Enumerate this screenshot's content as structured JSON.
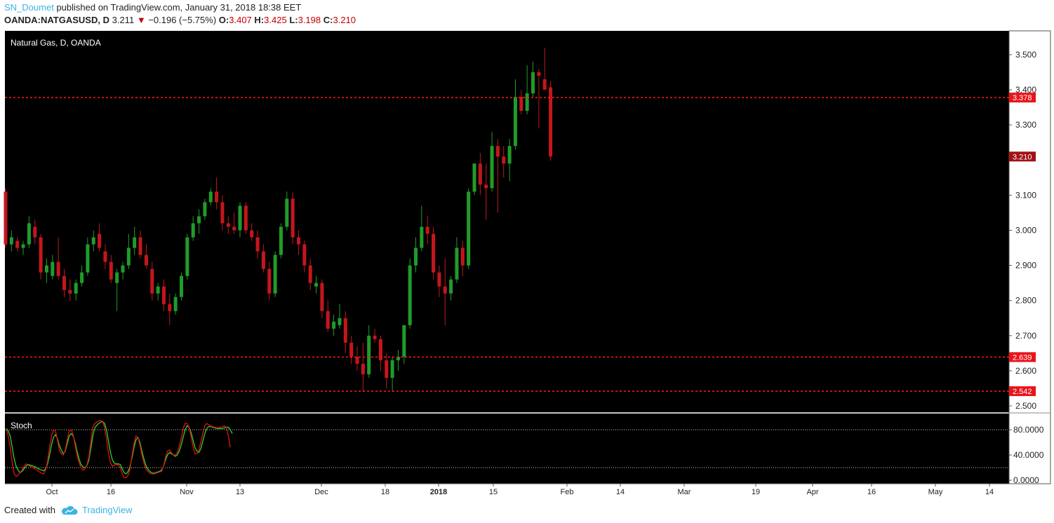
{
  "header": {
    "author": "SN_Doumet",
    "published_text": "published on TradingView.com, January 31, 2018 18:38 EET",
    "symbol": "OANDA:NATGASUSD, D",
    "last": "3.211",
    "change": "−0.196 (−5.75%)",
    "o_label": "O:",
    "o_value": "3.407",
    "h_label": "H:",
    "h_value": "3.425",
    "l_label": "L:",
    "l_value": "3.198",
    "c_label": "C:",
    "c_value": "3.210"
  },
  "footer": {
    "created_with": "Created with",
    "brand": "TradingView"
  },
  "colors": {
    "background": "#000000",
    "bull": "#1f9c2a",
    "bear": "#c4161c",
    "level_line": "#ff1a1a",
    "stoch_k": "#2bd42b",
    "stoch_d": "#e01010"
  },
  "chart_data": [
    {
      "type": "candlestick",
      "title": "Natural Gas, D, OANDA",
      "ylim": [
        2.48,
        3.54
      ],
      "y_ticks": [
        "3.500",
        "3.400",
        "3.300",
        "3.100",
        "3.000",
        "2.900",
        "2.800",
        "2.700",
        "2.600",
        "2.500"
      ],
      "x_ticks": [
        "Oct",
        "16",
        "Nov",
        "13",
        "Dec",
        "18",
        "2018",
        "15",
        "Feb",
        "14",
        "Mar",
        "19",
        "Apr",
        "16",
        "May",
        "14"
      ],
      "horizontal_levels": [
        {
          "value": 3.378,
          "label": "3.378"
        },
        {
          "value": 2.639,
          "label": "2.639"
        },
        {
          "value": 2.542,
          "label": "2.542"
        }
      ],
      "last_price_label": "3.210",
      "candles": [
        [
          3.11,
          3.12,
          2.95,
          2.96
        ],
        [
          2.96,
          3.0,
          2.94,
          2.98
        ],
        [
          2.97,
          2.98,
          2.94,
          2.95
        ],
        [
          2.95,
          2.97,
          2.93,
          2.96
        ],
        [
          2.96,
          3.04,
          2.95,
          3.02
        ],
        [
          3.01,
          3.03,
          2.96,
          2.98
        ],
        [
          2.98,
          2.99,
          2.86,
          2.88
        ],
        [
          2.88,
          2.92,
          2.85,
          2.9
        ],
        [
          2.87,
          2.93,
          2.86,
          2.91
        ],
        [
          2.91,
          2.98,
          2.86,
          2.87
        ],
        [
          2.87,
          2.89,
          2.81,
          2.83
        ],
        [
          2.83,
          2.86,
          2.8,
          2.82
        ],
        [
          2.82,
          2.86,
          2.8,
          2.85
        ],
        [
          2.85,
          2.9,
          2.84,
          2.88
        ],
        [
          2.88,
          2.98,
          2.87,
          2.96
        ],
        [
          2.96,
          3.0,
          2.94,
          2.98
        ],
        [
          2.99,
          3.02,
          2.94,
          2.95
        ],
        [
          2.94,
          2.96,
          2.89,
          2.91
        ],
        [
          2.91,
          2.93,
          2.85,
          2.86
        ],
        [
          2.85,
          2.89,
          2.77,
          2.88
        ],
        [
          2.88,
          2.91,
          2.86,
          2.9
        ],
        [
          2.9,
          2.99,
          2.89,
          2.95
        ],
        [
          2.95,
          3.01,
          2.93,
          2.98
        ],
        [
          2.98,
          3.0,
          2.92,
          2.93
        ],
        [
          2.93,
          2.96,
          2.89,
          2.9
        ],
        [
          2.89,
          2.91,
          2.8,
          2.82
        ],
        [
          2.82,
          2.85,
          2.8,
          2.84
        ],
        [
          2.84,
          2.86,
          2.77,
          2.79
        ],
        [
          2.79,
          2.82,
          2.73,
          2.77
        ],
        [
          2.77,
          2.82,
          2.76,
          2.81
        ],
        [
          2.81,
          2.88,
          2.8,
          2.87
        ],
        [
          2.87,
          2.99,
          2.86,
          2.98
        ],
        [
          2.98,
          3.04,
          2.97,
          3.02
        ],
        [
          3.02,
          3.06,
          2.99,
          3.04
        ],
        [
          3.04,
          3.09,
          3.03,
          3.08
        ],
        [
          3.08,
          3.12,
          3.07,
          3.11
        ],
        [
          3.11,
          3.15,
          3.06,
          3.08
        ],
        [
          3.08,
          3.1,
          3.0,
          3.02
        ],
        [
          3.02,
          3.04,
          2.99,
          3.01
        ],
        [
          3.01,
          3.05,
          2.99,
          3.0
        ],
        [
          3.0,
          3.08,
          2.98,
          3.07
        ],
        [
          3.07,
          3.08,
          2.99,
          3.0
        ],
        [
          3.0,
          3.02,
          2.97,
          2.98
        ],
        [
          2.98,
          3.0,
          2.92,
          2.94
        ],
        [
          2.94,
          2.96,
          2.88,
          2.89
        ],
        [
          2.89,
          2.91,
          2.8,
          2.82
        ],
        [
          2.82,
          2.94,
          2.81,
          2.93
        ],
        [
          2.93,
          3.02,
          2.92,
          3.01
        ],
        [
          3.01,
          3.11,
          3.0,
          3.09
        ],
        [
          3.09,
          3.11,
          2.96,
          2.98
        ],
        [
          2.98,
          3.0,
          2.93,
          2.96
        ],
        [
          2.96,
          2.97,
          2.88,
          2.9
        ],
        [
          2.9,
          2.92,
          2.83,
          2.85
        ],
        [
          2.84,
          2.87,
          2.82,
          2.85
        ],
        [
          2.85,
          2.86,
          2.75,
          2.77
        ],
        [
          2.77,
          2.8,
          2.71,
          2.72
        ],
        [
          2.72,
          2.76,
          2.7,
          2.74
        ],
        [
          2.73,
          2.79,
          2.72,
          2.75
        ],
        [
          2.75,
          2.77,
          2.65,
          2.68
        ],
        [
          2.68,
          2.7,
          2.62,
          2.64
        ],
        [
          2.64,
          2.67,
          2.6,
          2.62
        ],
        [
          2.62,
          2.68,
          2.54,
          2.59
        ],
        [
          2.59,
          2.73,
          2.58,
          2.7
        ],
        [
          2.7,
          2.72,
          2.68,
          2.69
        ],
        [
          2.69,
          2.7,
          2.6,
          2.63
        ],
        [
          2.63,
          2.65,
          2.55,
          2.58
        ],
        [
          2.58,
          2.64,
          2.54,
          2.63
        ],
        [
          2.63,
          2.66,
          2.6,
          2.64
        ],
        [
          2.64,
          2.72,
          2.62,
          2.73
        ],
        [
          2.73,
          2.92,
          2.72,
          2.9
        ],
        [
          2.9,
          2.98,
          2.88,
          2.95
        ],
        [
          2.95,
          3.07,
          2.94,
          3.01
        ],
        [
          3.01,
          3.04,
          2.96,
          2.99
        ],
        [
          2.99,
          3.01,
          2.86,
          2.88
        ],
        [
          2.88,
          2.9,
          2.81,
          2.84
        ],
        [
          2.84,
          2.92,
          2.73,
          2.82
        ],
        [
          2.82,
          2.87,
          2.8,
          2.86
        ],
        [
          2.86,
          2.98,
          2.85,
          2.95
        ],
        [
          2.95,
          2.97,
          2.87,
          2.9
        ],
        [
          2.9,
          3.12,
          2.89,
          3.11
        ],
        [
          3.11,
          3.19,
          3.1,
          3.19
        ],
        [
          3.19,
          3.22,
          3.1,
          3.13
        ],
        [
          3.13,
          3.19,
          3.03,
          3.12
        ],
        [
          3.12,
          3.28,
          3.11,
          3.24
        ],
        [
          3.24,
          3.26,
          3.05,
          3.21
        ],
        [
          3.21,
          3.24,
          3.15,
          3.19
        ],
        [
          3.19,
          3.26,
          3.14,
          3.24
        ],
        [
          3.24,
          3.43,
          3.23,
          3.38
        ],
        [
          3.38,
          3.4,
          3.33,
          3.34
        ],
        [
          3.34,
          3.47,
          3.33,
          3.39
        ],
        [
          3.39,
          3.48,
          3.38,
          3.45
        ],
        [
          3.45,
          3.46,
          3.29,
          3.44
        ],
        [
          3.43,
          3.52,
          3.4,
          3.4
        ],
        [
          3.407,
          3.425,
          3.198,
          3.21
        ]
      ]
    },
    {
      "type": "line",
      "title": "Stoch",
      "ylim": [
        -2,
        100
      ],
      "y_ticks": [
        "80.0000",
        "40.0000",
        "0.0000"
      ],
      "bands": [
        80,
        20
      ],
      "series": [
        {
          "values": [
            82,
            78,
            70,
            52,
            34,
            22,
            16,
            12,
            14,
            18,
            22,
            25,
            24,
            23,
            22,
            21,
            19,
            17,
            16,
            15,
            18,
            26,
            40,
            56,
            68,
            72,
            66,
            55,
            48,
            42,
            46,
            58,
            70,
            74,
            70,
            60,
            46,
            34,
            25,
            21,
            20,
            23,
            32,
            50,
            70,
            83,
            87,
            90,
            92,
            93,
            90,
            80,
            62,
            44,
            32,
            27,
            26,
            26,
            25,
            18,
            12,
            10,
            14,
            22,
            36,
            52,
            64,
            68,
            60,
            46,
            34,
            24,
            18,
            14,
            12,
            11,
            12,
            13,
            14,
            16,
            22,
            32,
            40,
            44,
            42,
            40,
            38,
            40,
            46,
            56,
            68,
            80,
            86,
            84,
            76,
            64,
            52,
            46,
            44,
            50,
            62,
            74,
            82,
            85,
            85,
            84,
            83,
            82,
            82,
            82,
            82,
            83,
            84,
            84,
            80,
            74
          ]
        },
        {
          "values": [
            80,
            70,
            52,
            28,
            10,
            6,
            8,
            12,
            16,
            22,
            26,
            24,
            22,
            21,
            19,
            18,
            15,
            13,
            11,
            10,
            16,
            30,
            52,
            70,
            80,
            78,
            64,
            48,
            42,
            40,
            48,
            64,
            78,
            80,
            72,
            56,
            40,
            28,
            20,
            16,
            18,
            24,
            36,
            60,
            84,
            90,
            92,
            94,
            95,
            93,
            84,
            66,
            42,
            28,
            22,
            24,
            25,
            24,
            20,
            10,
            4,
            4,
            8,
            18,
            40,
            58,
            70,
            68,
            56,
            40,
            28,
            18,
            14,
            11,
            10,
            10,
            11,
            12,
            13,
            14,
            22,
            36,
            46,
            48,
            44,
            40,
            40,
            44,
            54,
            66,
            82,
            90,
            90,
            84,
            70,
            54,
            42,
            42,
            48,
            60,
            74,
            86,
            90,
            88,
            86,
            85,
            84,
            83,
            83,
            84,
            85,
            86,
            84,
            70,
            52
          ]
        }
      ]
    }
  ]
}
